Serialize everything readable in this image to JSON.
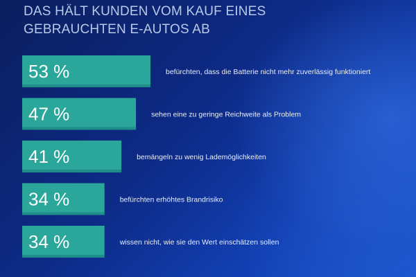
{
  "title_lines": [
    "DAS HÄLT KUNDEN VOM KAUF EINES",
    "GEBRAUCHTEN E-AUTOS AB"
  ],
  "colors": {
    "bar": "#2aa79a",
    "background": "#0d2a86",
    "text": "#ffffff"
  },
  "chart_data": {
    "type": "bar",
    "orientation": "horizontal",
    "title": "DAS HÄLT KUNDEN VOM KAUF EINES GEBRAUCHTEN E-AUTOS AB",
    "unit": "%",
    "categories": [
      "befürchten, dass die Batterie nicht mehr zuverlässig funktioniert",
      "sehen eine zu geringe Reichweite als Problem",
      "bemängeln zu wenig Lademöglichkeiten",
      "befürchten erhöhtes Brandrisiko",
      "wissen nicht, wie sie den Wert einschätzen sollen"
    ],
    "values": [
      53,
      47,
      41,
      34,
      34
    ],
    "value_labels": [
      "53 %",
      "47 %",
      "41 %",
      "34 %",
      "34 %"
    ],
    "xlim": [
      0,
      53
    ]
  }
}
